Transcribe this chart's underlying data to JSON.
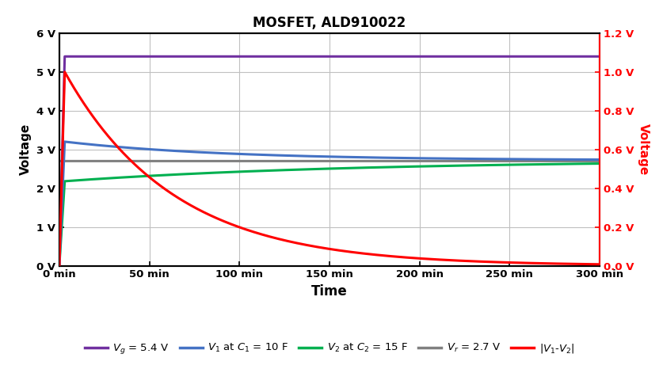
{
  "title": "MOSFET, ALD910022",
  "xlabel": "Time",
  "ylabel_left": "Voltage",
  "ylabel_right": "Voltage",
  "xlim": [
    0,
    300
  ],
  "ylim_left": [
    0,
    6
  ],
  "ylim_right": [
    0,
    1.2
  ],
  "xtick_positions": [
    0,
    50,
    100,
    150,
    200,
    250,
    300
  ],
  "xtick_labels": [
    "0 min",
    "50 min",
    "100 min",
    "150 min",
    "200 min",
    "250 min",
    "300 min"
  ],
  "ytick_left": [
    0,
    1,
    2,
    3,
    4,
    5,
    6
  ],
  "ytick_left_labels": [
    "0 V",
    "1 V",
    "2 V",
    "3 V",
    "4 V",
    "5 V",
    "6 V"
  ],
  "ytick_right": [
    0.0,
    0.2,
    0.4,
    0.6,
    0.8,
    1.0,
    1.2
  ],
  "ytick_right_labels": [
    "0.0 V",
    "0.2 V",
    "0.4 V",
    "0.6 V",
    "0.8 V",
    "1.0 V",
    "1.2 V"
  ],
  "Vg": 5.4,
  "Vr": 2.7,
  "V1_init": 3.2,
  "V2_init": 2.18,
  "V_final": 2.72,
  "tau1": 90,
  "tau2": 160,
  "rise_t": 3.0,
  "red_peak_time": 3.0,
  "red_peak_val": 1.0,
  "red_tau": 60,
  "colors": {
    "Vg": "#7030A0",
    "V1": "#4472C4",
    "V2": "#00B050",
    "Vr": "#808080",
    "diff": "#FF0000",
    "grid": "#C0C0C0",
    "axis": "#000000",
    "title": "#000000",
    "right_label": "#FF0000"
  },
  "linewidth": 2.2,
  "background": "#FFFFFF",
  "figsize": [
    8.32,
    4.66
  ],
  "dpi": 100
}
